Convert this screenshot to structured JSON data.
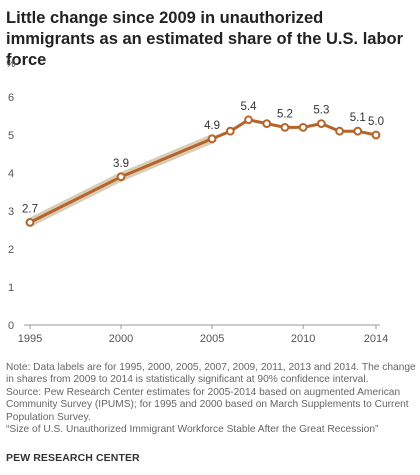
{
  "header": {
    "title": "Little change since 2009 in unauthorized immigrants as an estimated share of the U.S. labor force",
    "unit": "%"
  },
  "chart_data": {
    "type": "line",
    "title": "Little change since 2009 in unauthorized immigrants as an estimated share of the U.S. labor force",
    "xlabel": "",
    "ylabel": "%",
    "xlim": [
      1995,
      2014
    ],
    "ylim": [
      0,
      6
    ],
    "yticks": [
      0,
      1,
      2,
      3,
      4,
      5,
      6
    ],
    "xticks": [
      1995,
      2000,
      2005,
      2010,
      2014
    ],
    "grid": false,
    "legend": "none",
    "colors": {
      "line": "#b5652a",
      "band": "#d9cdb7",
      "point_fill": "#ffffff"
    },
    "series": [
      {
        "x": [
          1995,
          2000,
          2005,
          2006,
          2007,
          2008,
          2009,
          2010,
          2011,
          2012,
          2013,
          2014
        ],
        "values": [
          2.7,
          3.9,
          4.9,
          5.1,
          5.4,
          5.3,
          5.2,
          5.2,
          5.3,
          5.1,
          5.1,
          5.0
        ],
        "labeled_points": [
          {
            "x": 1995,
            "label": "2.7"
          },
          {
            "x": 2000,
            "label": "3.9"
          },
          {
            "x": 2005,
            "label": "4.9"
          },
          {
            "x": 2007,
            "label": "5.4"
          },
          {
            "x": 2009,
            "label": "5.2"
          },
          {
            "x": 2011,
            "label": "5.3"
          },
          {
            "x": 2013,
            "label": "5.1"
          },
          {
            "x": 2014,
            "label": "5.0"
          }
        ]
      }
    ],
    "interpolated_segment": {
      "from": 1995,
      "to": 2005
    }
  },
  "notes": {
    "note": "Note: Data labels are for 1995, 2000, 2005, 2007, 2009, 2011, 2013 and 2014. The change in shares from 2009 to 2014 is statistically significant at 90% confidence interval.",
    "source": "Source: Pew Research Center estimates for 2005-2014 based on augmented American Community Survey (IPUMS); for 1995 and 2000 based on March Supplements to Current Population Survey.",
    "report": "“Size of U.S. Unauthorized Immigrant Workforce Stable After the Great Recession”"
  },
  "brand": "PEW RESEARCH CENTER"
}
